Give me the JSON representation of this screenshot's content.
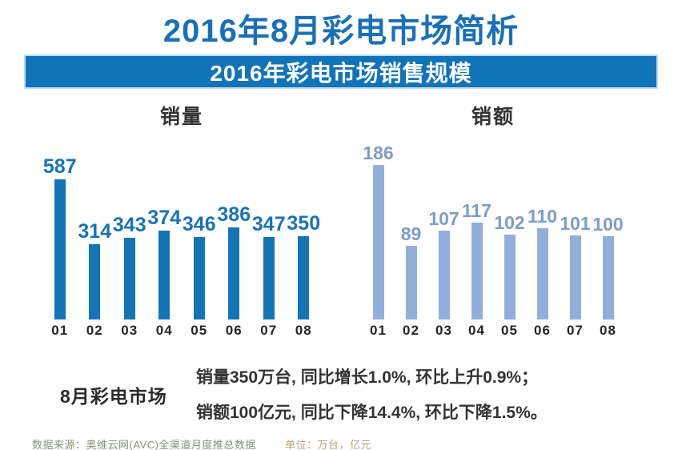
{
  "page": {
    "title": "2016年8月彩电市场简析",
    "banner": "2016年彩电市场销售规模"
  },
  "colors": {
    "title_blue": "#1a70b8",
    "banner_bg": "#1173b8",
    "left_bar": "#1474b6",
    "left_label": "#1a72b8",
    "right_bar": "#92afdb",
    "right_label": "#7d9cc8"
  },
  "chart_data": [
    {
      "type": "bar",
      "title": "销量",
      "categories": [
        "01",
        "02",
        "03",
        "04",
        "05",
        "06",
        "07",
        "08"
      ],
      "values": [
        587,
        314,
        343,
        374,
        346,
        386,
        347,
        350
      ],
      "unit": "万台",
      "bar_color": "#1474b6",
      "label_color": "#1a72b8",
      "ylim": [
        0,
        587
      ],
      "grid": "off",
      "legend": "none"
    },
    {
      "type": "bar",
      "title": "销额",
      "categories": [
        "01",
        "02",
        "03",
        "04",
        "05",
        "06",
        "07",
        "08"
      ],
      "values": [
        186,
        89,
        107,
        117,
        102,
        110,
        101,
        100
      ],
      "unit": "亿元",
      "bar_color": "#92afdb",
      "label_color": "#7d9cc8",
      "ylim": [
        0,
        186
      ],
      "grid": "off",
      "legend": "none"
    }
  ],
  "summary": {
    "heading": "8月彩电市场",
    "line1": "销量350万台, 同比增长1.0%, 环比上升0.9%；",
    "line2": "销额100亿元, 同比下降14.4%, 环比下降1.5%。"
  },
  "footer": {
    "source": "数据来源：奥维云网(AVC)全渠道月度推总数据",
    "unit": "单位：万台，亿元"
  }
}
